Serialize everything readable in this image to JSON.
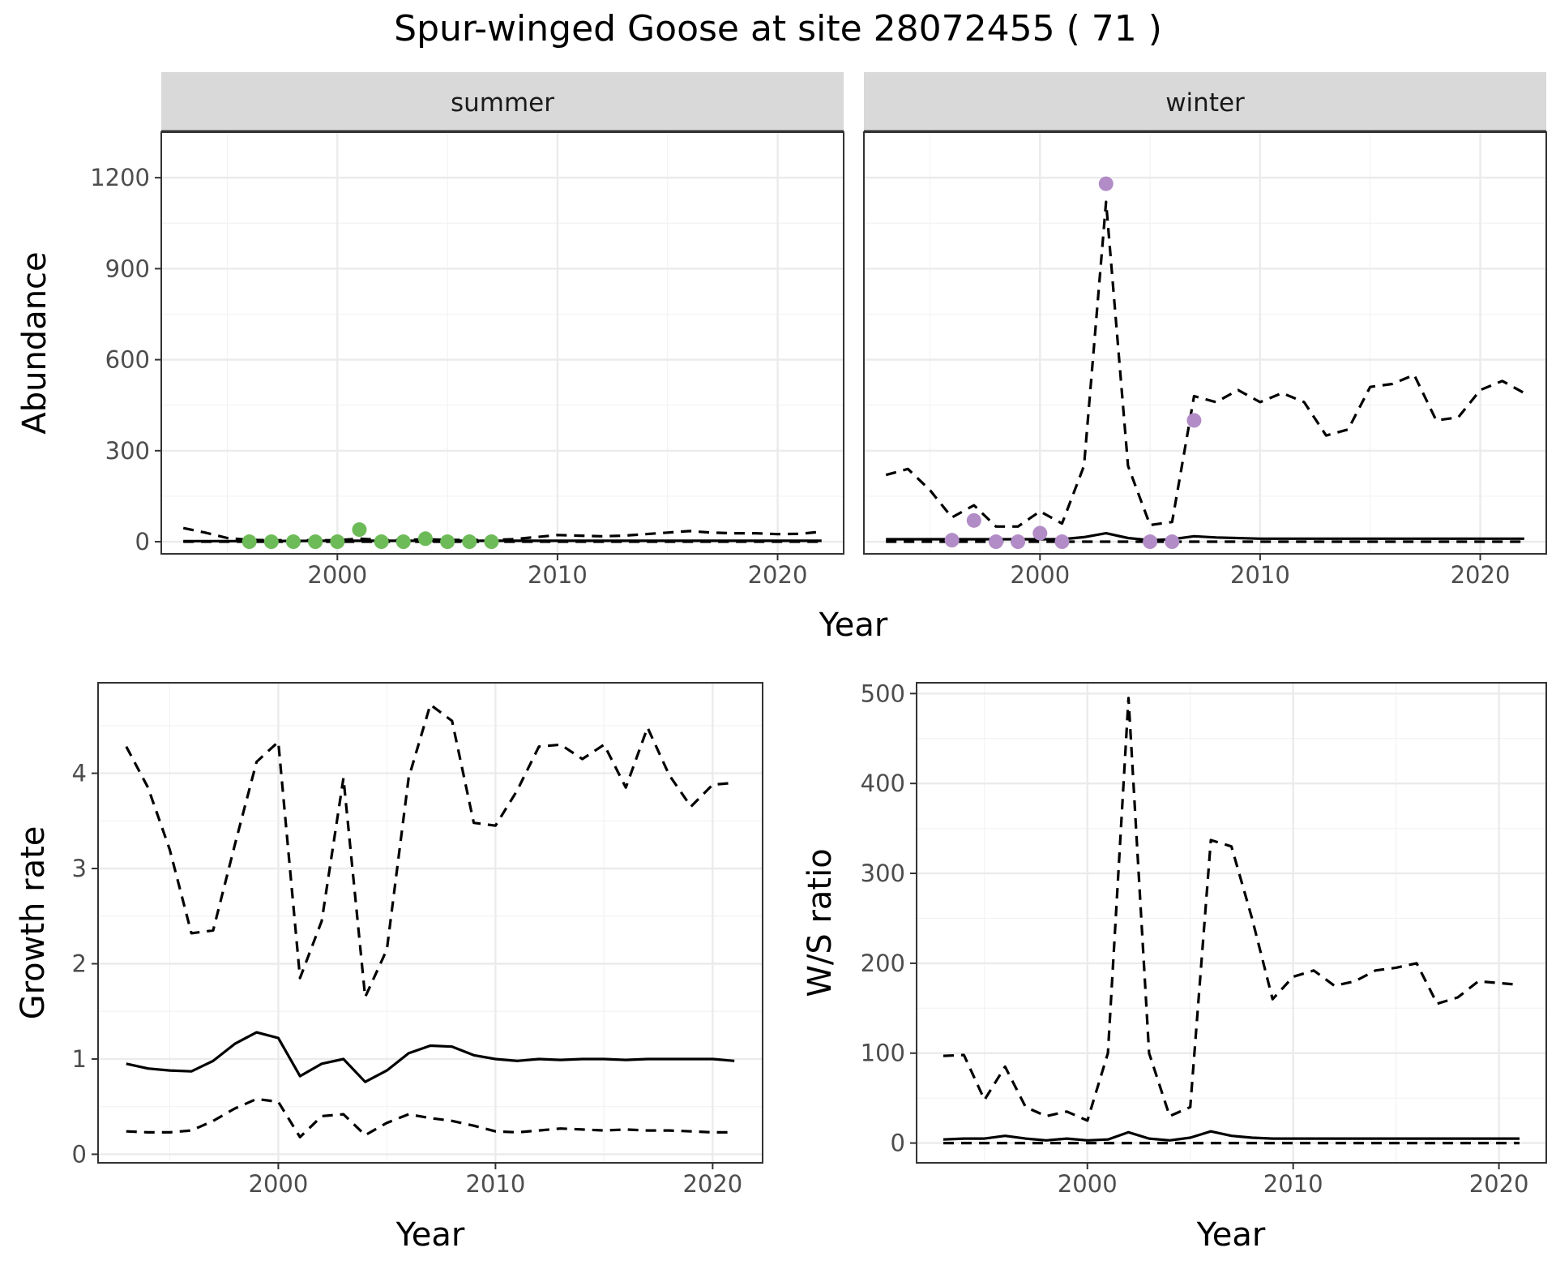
{
  "title": "Spur-winged Goose at site 28072455 ( 71 )",
  "colors": {
    "summer_points": "#6dbb58",
    "winter_points": "#b28cc7",
    "line": "#000000",
    "strip_bg": "#d9d9d9",
    "grid": "#ebebeb"
  },
  "chart_data": [
    {
      "id": "abundance",
      "type": "line",
      "facets": [
        "summer",
        "winter"
      ],
      "xlabel": "Year",
      "ylabel": "Abundance",
      "xlim": [
        1992,
        2023
      ],
      "ylim": [
        -40,
        1350
      ],
      "xticks": [
        2000,
        2010,
        2020
      ],
      "yticks": [
        0,
        300,
        600,
        900,
        1200
      ],
      "grid": true,
      "panels": [
        {
          "facet": "summer",
          "series": [
            {
              "style": "solid",
              "x": [
                1993,
                1996,
                2000,
                2005,
                2010,
                2015,
                2022
              ],
              "y": [
                2,
                2,
                3,
                3,
                3,
                3,
                3
              ]
            },
            {
              "style": "dashed",
              "x": [
                1993,
                1994,
                1995,
                1996,
                1997,
                1998,
                1999,
                2000,
                2001,
                2002,
                2003,
                2004,
                2005,
                2006,
                2007,
                2008,
                2009,
                2010,
                2011,
                2012,
                2013,
                2014,
                2015,
                2016,
                2017,
                2018,
                2019,
                2020,
                2021,
                2022
              ],
              "y": [
                45,
                30,
                12,
                6,
                5,
                5,
                5,
                5,
                10,
                6,
                6,
                8,
                6,
                6,
                6,
                8,
                15,
                22,
                20,
                18,
                20,
                25,
                30,
                35,
                30,
                28,
                28,
                25,
                26,
                33
              ]
            },
            {
              "style": "dashed",
              "x": [
                1993,
                2022
              ],
              "y": [
                0,
                0
              ]
            }
          ],
          "points": {
            "x": [
              1996,
              1997,
              1998,
              1999,
              2000,
              2001,
              2002,
              2003,
              2004,
              2005,
              2006,
              2007
            ],
            "y": [
              0,
              0,
              0,
              0,
              0,
              40,
              0,
              0,
              10,
              0,
              0,
              0
            ]
          }
        },
        {
          "facet": "winter",
          "series": [
            {
              "style": "solid",
              "x": [
                1993,
                1995,
                1997,
                1999,
                2001,
                2002,
                2003,
                2004,
                2005,
                2006,
                2007,
                2008,
                2010,
                2015,
                2022
              ],
              "y": [
                8,
                8,
                8,
                8,
                8,
                15,
                28,
                12,
                5,
                8,
                18,
                14,
                10,
                10,
                10
              ]
            },
            {
              "style": "dashed",
              "x": [
                1993,
                1994,
                1995,
                1996,
                1997,
                1998,
                1999,
                2000,
                2001,
                2002,
                2003,
                2004,
                2005,
                2006,
                2007,
                2008,
                2009,
                2010,
                2011,
                2012,
                2013,
                2014,
                2015,
                2016,
                2017,
                2018,
                2019,
                2020,
                2021,
                2022
              ],
              "y": [
                220,
                240,
                170,
                80,
                120,
                50,
                50,
                100,
                60,
                250,
                1120,
                250,
                55,
                65,
                480,
                460,
                500,
                460,
                490,
                460,
                350,
                370,
                510,
                520,
                550,
                400,
                410,
                500,
                530,
                490
              ]
            },
            {
              "style": "dashed",
              "x": [
                1993,
                2022
              ],
              "y": [
                0,
                0
              ]
            }
          ],
          "points": {
            "x": [
              1996,
              1997,
              1998,
              1999,
              2000,
              2001,
              2003,
              2005,
              2006,
              2007
            ],
            "y": [
              5,
              70,
              0,
              0,
              28,
              0,
              1180,
              0,
              0,
              400
            ]
          }
        }
      ]
    },
    {
      "id": "growth",
      "type": "line",
      "xlabel": "Year",
      "ylabel": "Growth rate",
      "xlim": [
        1991.7,
        2022.3
      ],
      "ylim": [
        -0.09,
        4.95
      ],
      "xticks": [
        2000,
        2010,
        2020
      ],
      "yticks": [
        0,
        1,
        2,
        3,
        4
      ],
      "grid": true,
      "series": [
        {
          "style": "solid",
          "x": [
            1993,
            1994,
            1995,
            1996,
            1997,
            1998,
            1999,
            2000,
            2001,
            2002,
            2003,
            2004,
            2005,
            2006,
            2007,
            2008,
            2009,
            2010,
            2011,
            2012,
            2013,
            2014,
            2015,
            2016,
            2017,
            2018,
            2019,
            2020,
            2021
          ],
          "y": [
            0.95,
            0.9,
            0.88,
            0.87,
            0.98,
            1.16,
            1.28,
            1.22,
            0.82,
            0.95,
            1.0,
            0.76,
            0.88,
            1.06,
            1.14,
            1.13,
            1.04,
            1.0,
            0.98,
            1.0,
            0.99,
            1.0,
            1.0,
            0.99,
            1.0,
            1.0,
            1.0,
            1.0,
            0.98
          ]
        },
        {
          "style": "dashed",
          "x": [
            1993,
            1994,
            1995,
            1996,
            1997,
            1998,
            1999,
            2000,
            2001,
            2002,
            2003,
            2004,
            2005,
            2006,
            2007,
            2008,
            2009,
            2010,
            2011,
            2012,
            2013,
            2014,
            2015,
            2016,
            2017,
            2018,
            2019,
            2020,
            2021
          ],
          "y": [
            4.28,
            3.85,
            3.2,
            2.32,
            2.35,
            3.25,
            4.12,
            4.33,
            1.85,
            2.45,
            3.95,
            1.65,
            2.15,
            3.95,
            4.72,
            4.55,
            3.48,
            3.45,
            3.82,
            4.28,
            4.3,
            4.15,
            4.3,
            3.85,
            4.48,
            3.98,
            3.65,
            3.88,
            3.9
          ]
        },
        {
          "style": "dashed",
          "x": [
            1993,
            1994,
            1995,
            1996,
            1997,
            1998,
            1999,
            2000,
            2001,
            2002,
            2003,
            2004,
            2005,
            2006,
            2007,
            2008,
            2009,
            2010,
            2011,
            2012,
            2013,
            2014,
            2015,
            2016,
            2017,
            2018,
            2019,
            2020,
            2021
          ],
          "y": [
            0.24,
            0.23,
            0.23,
            0.25,
            0.35,
            0.48,
            0.58,
            0.55,
            0.18,
            0.4,
            0.42,
            0.2,
            0.33,
            0.42,
            0.38,
            0.35,
            0.3,
            0.24,
            0.23,
            0.25,
            0.27,
            0.26,
            0.25,
            0.26,
            0.25,
            0.25,
            0.24,
            0.23,
            0.23
          ]
        }
      ]
    },
    {
      "id": "ratio",
      "type": "line",
      "xlabel": "Year",
      "ylabel": "W/S ratio",
      "xlim": [
        1991.7,
        2022.3
      ],
      "ylim": [
        -22,
        512
      ],
      "xticks": [
        2000,
        2010,
        2020
      ],
      "yticks": [
        0,
        100,
        200,
        300,
        400,
        500
      ],
      "grid": true,
      "series": [
        {
          "style": "solid",
          "x": [
            1993,
            1994,
            1995,
            1996,
            1997,
            1998,
            1999,
            2000,
            2001,
            2002,
            2003,
            2004,
            2005,
            2006,
            2007,
            2008,
            2009,
            2010,
            2015,
            2021
          ],
          "y": [
            4,
            5,
            5,
            8,
            5,
            3,
            5,
            3,
            4,
            12,
            5,
            3,
            6,
            13,
            8,
            6,
            5,
            5,
            5,
            5
          ]
        },
        {
          "style": "dashed",
          "x": [
            1993,
            1994,
            1995,
            1996,
            1997,
            1998,
            1999,
            2000,
            2001,
            2002,
            2003,
            2004,
            2005,
            2006,
            2007,
            2008,
            2009,
            2010,
            2011,
            2012,
            2013,
            2014,
            2015,
            2016,
            2017,
            2018,
            2019,
            2020,
            2021
          ],
          "y": [
            97,
            98,
            48,
            85,
            40,
            30,
            35,
            25,
            100,
            495,
            100,
            30,
            40,
            337,
            330,
            250,
            160,
            185,
            192,
            175,
            180,
            192,
            195,
            200,
            155,
            162,
            180,
            178,
            176
          ]
        },
        {
          "style": "dashed",
          "x": [
            1993,
            2021
          ],
          "y": [
            0,
            0
          ]
        }
      ]
    }
  ]
}
